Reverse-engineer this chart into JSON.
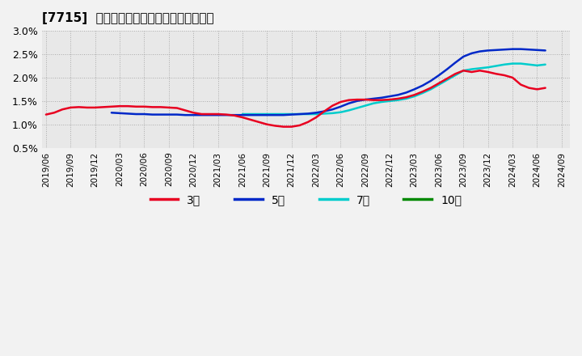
{
  "title": "[7715]  経常利益マージンの標準偏差の推移",
  "background_color": "#f0f0f0",
  "plot_bg_color": "#e8e8e8",
  "grid_color": "#aaaaaa",
  "ylim": [
    0.005,
    0.03
  ],
  "yticks": [
    0.005,
    0.01,
    0.015,
    0.02,
    0.025,
    0.03
  ],
  "ytick_labels": [
    "0.5%",
    "1.0%",
    "1.5%",
    "2.0%",
    "2.5%",
    "3.0%"
  ],
  "series": {
    "3year": {
      "color": "#e80020",
      "label": "3年",
      "y": [
        0.0121,
        0.0125,
        0.0132,
        0.0136,
        0.0137,
        0.0136,
        0.0136,
        0.0137,
        0.0138,
        0.0139,
        0.0139,
        0.0138,
        0.0138,
        0.0137,
        0.0137,
        0.0136,
        0.0135,
        0.013,
        0.0125,
        0.0122,
        0.0122,
        0.0122,
        0.0121,
        0.0119,
        0.0115,
        0.011,
        0.0105,
        0.01,
        0.0097,
        0.0095,
        0.0095,
        0.0098,
        0.0105,
        0.0115,
        0.0128,
        0.014,
        0.0148,
        0.0152,
        0.0153,
        0.0153,
        0.0152,
        0.0152,
        0.0153,
        0.0155,
        0.0158,
        0.0163,
        0.017,
        0.0178,
        0.0188,
        0.0198,
        0.0208,
        0.0215,
        0.0212,
        0.0215,
        0.0212,
        0.0208,
        0.0205,
        0.02,
        0.0185,
        0.0178,
        0.0175,
        0.0178
      ]
    },
    "5year": {
      "color": "#0028c8",
      "label": "5年",
      "y": [
        null,
        null,
        null,
        null,
        null,
        null,
        null,
        null,
        0.0125,
        0.0124,
        0.0123,
        0.0122,
        0.0122,
        0.0121,
        0.0121,
        0.0121,
        0.0121,
        0.012,
        0.012,
        0.012,
        0.012,
        0.012,
        0.012,
        0.012,
        0.012,
        0.012,
        0.012,
        0.012,
        0.012,
        0.012,
        0.0121,
        0.0122,
        0.0123,
        0.0125,
        0.0128,
        0.0132,
        0.0138,
        0.0145,
        0.015,
        0.0153,
        0.0155,
        0.0157,
        0.016,
        0.0163,
        0.0168,
        0.0175,
        0.0183,
        0.0193,
        0.0205,
        0.0218,
        0.0232,
        0.0245,
        0.0252,
        0.0256,
        0.0258,
        0.0259,
        0.026,
        0.0261,
        0.0261,
        0.026,
        0.0259,
        0.0258
      ]
    },
    "7year": {
      "color": "#00cccc",
      "label": "7年",
      "y": [
        null,
        null,
        null,
        null,
        null,
        null,
        null,
        null,
        null,
        null,
        null,
        null,
        null,
        null,
        null,
        null,
        null,
        null,
        null,
        null,
        null,
        null,
        null,
        null,
        0.0122,
        0.0122,
        0.0122,
        0.0122,
        0.0122,
        0.0122,
        0.0122,
        0.0122,
        0.0122,
        0.0122,
        0.0123,
        0.0124,
        0.0126,
        0.013,
        0.0135,
        0.014,
        0.0145,
        0.0148,
        0.015,
        0.0152,
        0.0155,
        0.016,
        0.0167,
        0.0175,
        0.0185,
        0.0195,
        0.0205,
        0.0215,
        0.0218,
        0.022,
        0.0222,
        0.0225,
        0.0228,
        0.023,
        0.023,
        0.0228,
        0.0226,
        0.0228
      ]
    },
    "10year": {
      "color": "#008800",
      "label": "10年",
      "y": []
    }
  },
  "xtick_labels": [
    "2019/06",
    "2019/09",
    "2019/12",
    "2020/03",
    "2020/06",
    "2020/09",
    "2020/12",
    "2021/03",
    "2021/06",
    "2021/09",
    "2021/12",
    "2022/03",
    "2022/06",
    "2022/09",
    "2022/12",
    "2023/03",
    "2023/06",
    "2023/09",
    "2023/12",
    "2024/03",
    "2024/06",
    "2024/09"
  ],
  "xtick_positions": [
    0,
    3,
    6,
    9,
    12,
    15,
    18,
    21,
    24,
    27,
    30,
    33,
    36,
    39,
    42,
    45,
    48,
    51,
    54,
    57,
    60,
    63
  ],
  "n_points": 62,
  "legend_labels": [
    "3年",
    "5年",
    "7年",
    "10年"
  ],
  "legend_colors": [
    "#e80020",
    "#0028c8",
    "#00cccc",
    "#008800"
  ]
}
